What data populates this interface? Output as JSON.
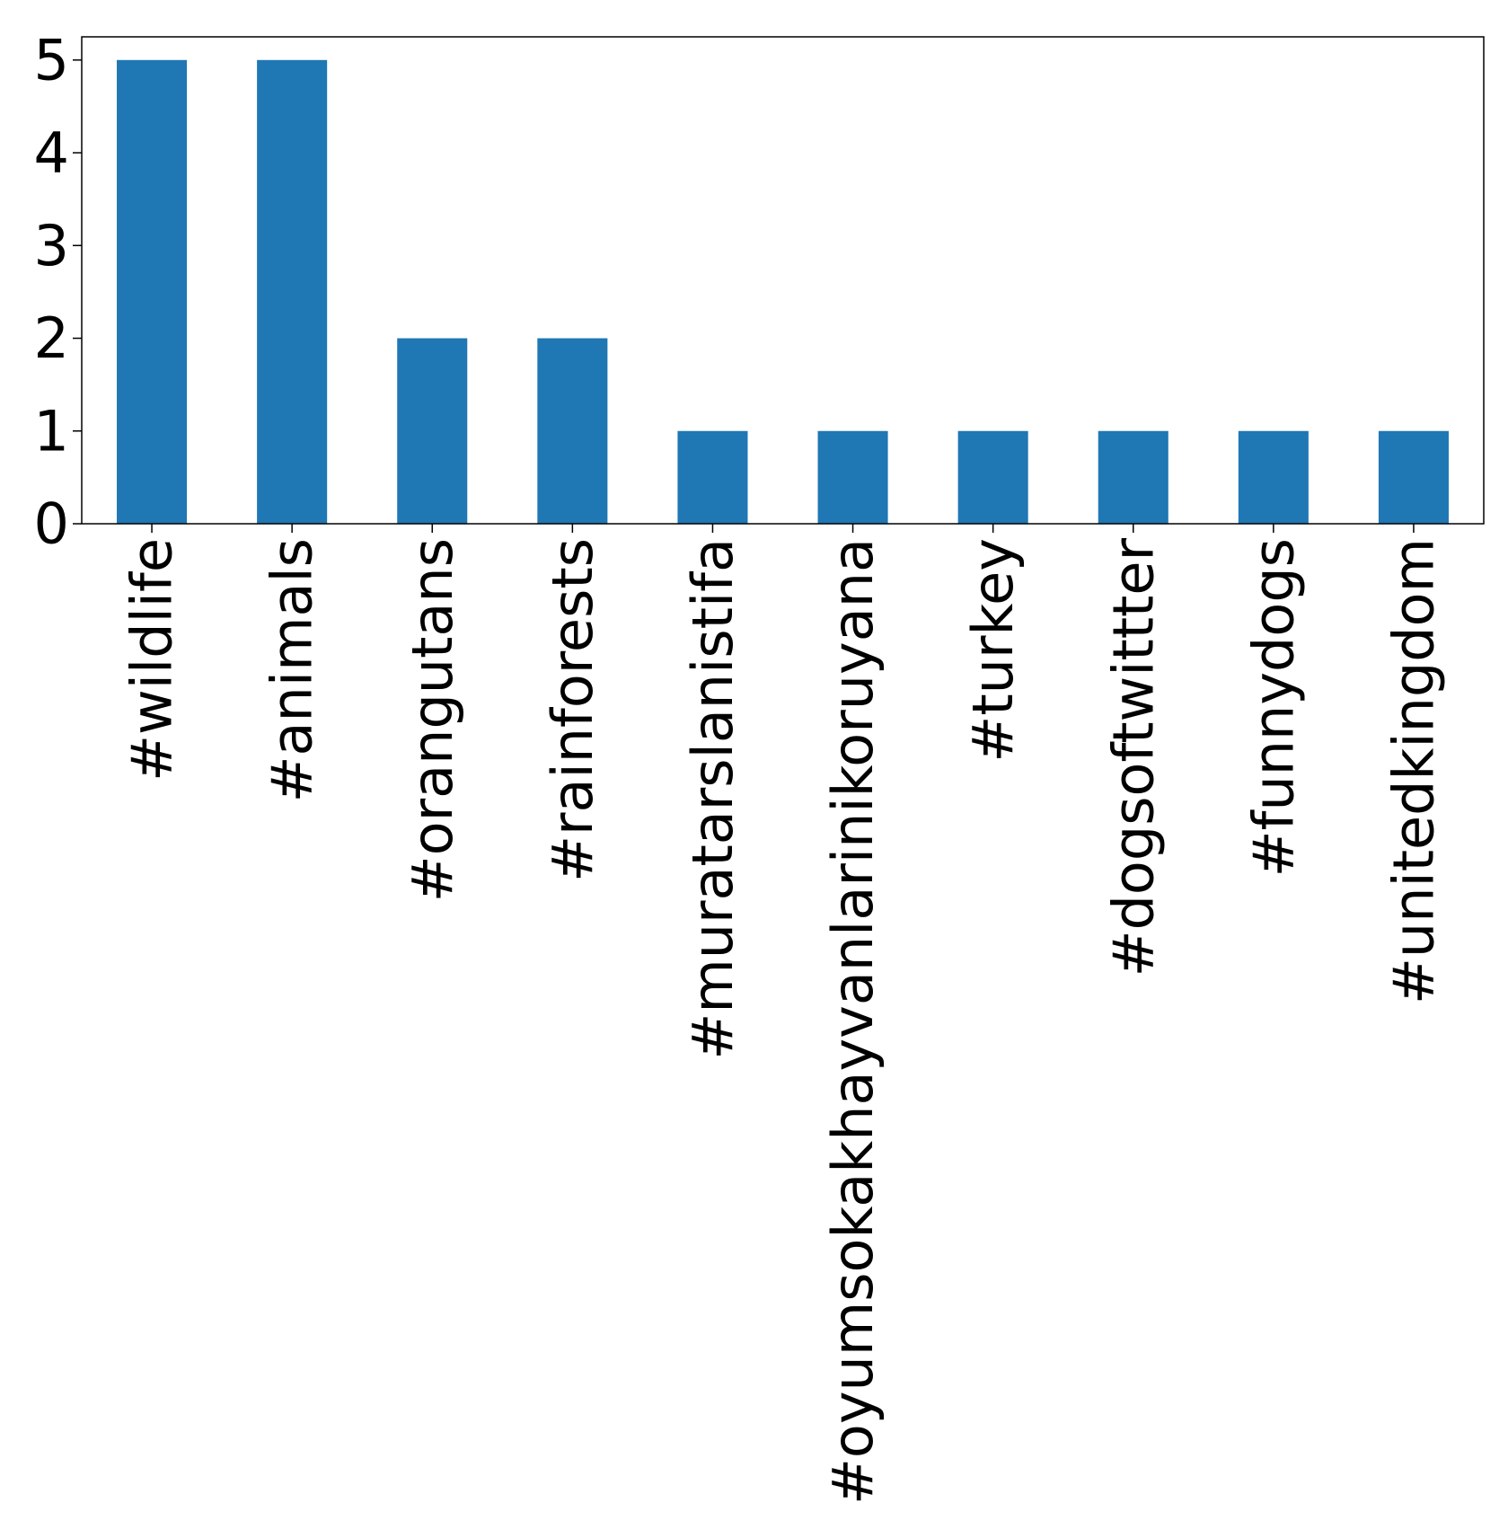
{
  "chart_data": {
    "type": "bar",
    "title": "",
    "xlabel": "",
    "ylabel": "",
    "categories": [
      "#wildlife",
      "#animals",
      "#orangutans",
      "#rainforests",
      "#muratarslanistifa",
      "#oyumsokakhayvanlarinikoruyana",
      "#turkey",
      "#dogsoftwittter",
      "#funnydogs",
      "#unitedkingdom"
    ],
    "values": [
      5,
      5,
      2,
      2,
      1,
      1,
      1,
      1,
      1,
      1
    ],
    "ylim": [
      0,
      5.25
    ],
    "yticks": [
      0,
      1,
      2,
      3,
      4,
      5
    ],
    "bar_color": "#1f77b4",
    "grid": false,
    "legend": "none"
  }
}
